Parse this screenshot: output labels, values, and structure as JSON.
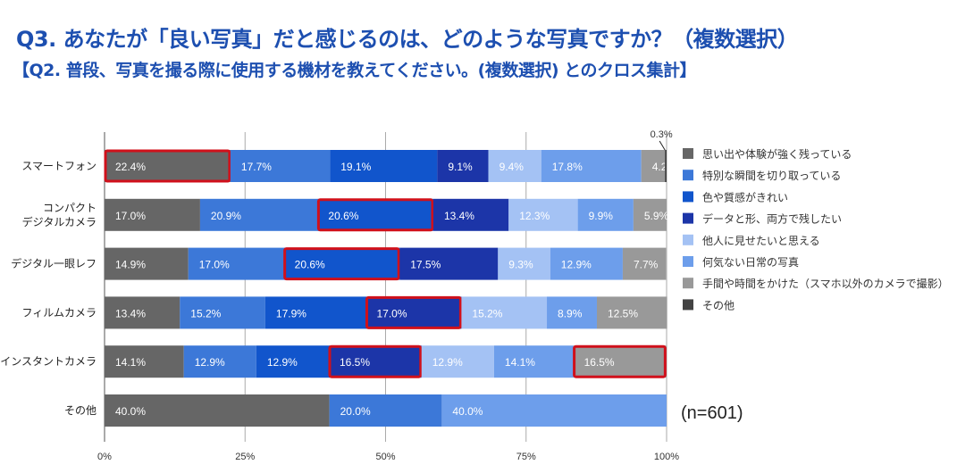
{
  "title": "Q3. あなたが「良い写真」だと感じるのは、どのような写真ですか？（複数選択）",
  "subtitle": "【Q2. 普段、写真を撮る際に使用する機材を教えてください。(複数選択) とのクロス集計】",
  "chart_data": {
    "type": "bar",
    "orientation": "horizontal",
    "stacked": "percent",
    "categories": [
      "スマートフォン",
      "コンパクト\nデジタルカメラ",
      "デジタル一眼レフ",
      "フィルムカメラ",
      "インスタントカメラ",
      "その他"
    ],
    "series": [
      {
        "name": "思い出や体験が強く残っている",
        "color": "#666666",
        "values": [
          22.4,
          17.0,
          14.9,
          13.4,
          14.1,
          40.0
        ]
      },
      {
        "name": "特別な瞬間を切り取っている",
        "color": "#3c78d8",
        "values": [
          17.7,
          20.9,
          17.0,
          15.2,
          12.9,
          20.0
        ]
      },
      {
        "name": "色や質感がきれい",
        "color": "#1155cc",
        "values": [
          19.1,
          20.6,
          20.6,
          17.9,
          12.9,
          0
        ]
      },
      {
        "name": "データと形、両方で残したい",
        "color": "#1c35a8",
        "values": [
          9.1,
          13.4,
          17.5,
          17.0,
          16.5,
          0
        ]
      },
      {
        "name": "他人に見せたいと思える",
        "color": "#a4c2f4",
        "values": [
          9.4,
          12.3,
          9.3,
          15.2,
          12.9,
          0
        ]
      },
      {
        "name": "何気ない日常の写真",
        "color": "#6d9eeb",
        "values": [
          17.8,
          9.9,
          12.9,
          8.9,
          14.1,
          40.0
        ]
      },
      {
        "name": "手間や時間をかけた（スマホ以外のカメラで撮影）",
        "color": "#999999",
        "values": [
          4.2,
          5.9,
          7.7,
          12.5,
          16.5,
          0
        ]
      },
      {
        "name": "その他",
        "color": "#434343",
        "values": [
          0.3,
          0,
          0,
          0,
          0,
          0
        ]
      }
    ],
    "highlighted": [
      [
        0,
        0
      ],
      [
        1,
        2
      ],
      [
        2,
        2
      ],
      [
        3,
        3
      ],
      [
        4,
        3
      ],
      [
        4,
        6
      ]
    ],
    "highlight_color": "#d0101b",
    "xlim": [
      0,
      100
    ],
    "xticks": [
      "0%",
      "25%",
      "50%",
      "75%",
      "100%"
    ],
    "grid": true,
    "legend": "right",
    "annotation": "(n=601)"
  }
}
